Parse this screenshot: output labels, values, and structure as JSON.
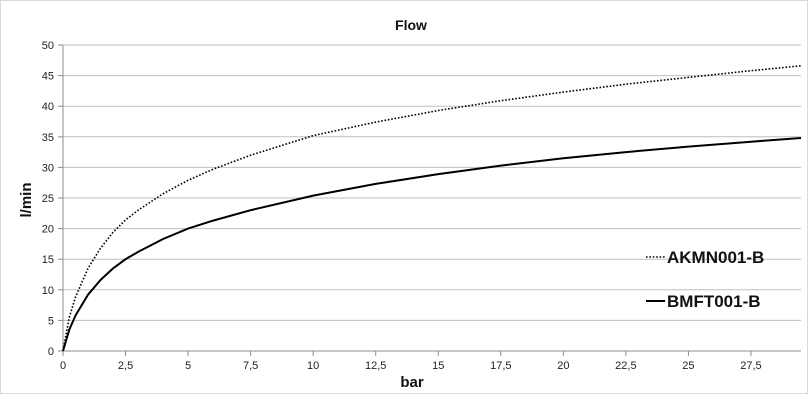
{
  "chart_data": {
    "type": "line",
    "title": "Flow",
    "xlabel": "bar",
    "ylabel": "l/min",
    "xlim": [
      0,
      29.5
    ],
    "ylim": [
      0,
      50
    ],
    "x_ticks": [
      "0",
      "2,5",
      "5",
      "7,5",
      "10",
      "12,5",
      "15",
      "17,5",
      "20",
      "22,5",
      "25",
      "27,5"
    ],
    "y_ticks": [
      "0",
      "5",
      "10",
      "15",
      "20",
      "25",
      "30",
      "35",
      "40",
      "45",
      "50"
    ],
    "grid": "horizontal",
    "legend_placement": "right",
    "x": [
      0,
      0.25,
      0.5,
      1,
      1.5,
      2,
      2.5,
      3,
      4,
      5,
      6,
      7.5,
      10,
      12.5,
      15,
      17.5,
      20,
      22.5,
      25,
      27.5,
      29.5
    ],
    "series": [
      {
        "name": "AKMN001-B",
        "style": "dotted",
        "color": "#000000",
        "values": [
          0,
          5.5,
          8.8,
          13.5,
          16.8,
          19.4,
          21.4,
          23.0,
          25.7,
          27.9,
          29.7,
          32.0,
          35.2,
          37.4,
          39.3,
          40.9,
          42.3,
          43.6,
          44.7,
          45.8,
          46.6
        ]
      },
      {
        "name": "BMFT001-B",
        "style": "solid",
        "color": "#000000",
        "values": [
          0,
          3.5,
          5.8,
          9.2,
          11.6,
          13.5,
          15.0,
          16.2,
          18.3,
          20.0,
          21.3,
          23.0,
          25.4,
          27.3,
          28.9,
          30.3,
          31.5,
          32.5,
          33.4,
          34.2,
          34.8
        ]
      }
    ]
  }
}
